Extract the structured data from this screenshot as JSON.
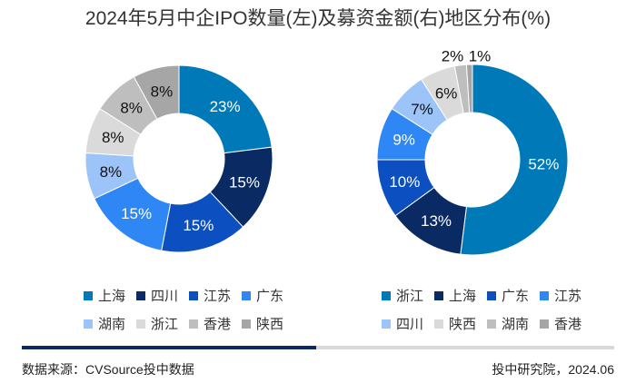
{
  "title": "2024年5月中企IPO数量(左)及募资金额(右)地区分布(%)",
  "chart_data": [
    {
      "type": "pie",
      "variant": "donut",
      "name": "IPO数量地区分布",
      "categories": [
        "上海",
        "四川",
        "江苏",
        "广东",
        "湖南",
        "浙江",
        "香港",
        "陕西"
      ],
      "values": [
        23,
        15,
        15,
        15,
        8,
        8,
        8,
        8
      ],
      "labels": [
        "23%",
        "15%",
        "15%",
        "15%",
        "8%",
        "8%",
        "8%",
        "8%"
      ],
      "colors": [
        "#0079B8",
        "#0A2A63",
        "#0B4FC0",
        "#2F86F5",
        "#9CC4F8",
        "#DADADA",
        "#BEBEBE",
        "#A6A6A6"
      ],
      "label_colors": [
        "#ffffff",
        "#ffffff",
        "#ffffff",
        "#ffffff",
        "#111111",
        "#111111",
        "#111111",
        "#111111"
      ],
      "legend_position": "bottom"
    },
    {
      "type": "pie",
      "variant": "donut",
      "name": "募资金额地区分布",
      "categories": [
        "浙江",
        "上海",
        "广东",
        "江苏",
        "四川",
        "陕西",
        "湖南",
        "香港"
      ],
      "values": [
        52,
        13,
        10,
        9,
        7,
        6,
        2,
        1
      ],
      "labels": [
        "52%",
        "13%",
        "10%",
        "9%",
        "7%",
        "6%",
        "2%",
        "1%"
      ],
      "colors": [
        "#0079B8",
        "#0A2A63",
        "#0B4FC0",
        "#2F86F5",
        "#9CC4F8",
        "#DADADA",
        "#BEBEBE",
        "#A6A6A6"
      ],
      "label_colors": [
        "#ffffff",
        "#ffffff",
        "#ffffff",
        "#ffffff",
        "#111111",
        "#111111",
        "#111111",
        "#111111"
      ],
      "legend_position": "bottom"
    }
  ],
  "footer": {
    "source": "数据来源：CVSource投中数据",
    "credit": "投中研究院，2024.06"
  },
  "divider": {
    "accent_color": "#0A2A63",
    "track_color": "#D9D9D9"
  }
}
